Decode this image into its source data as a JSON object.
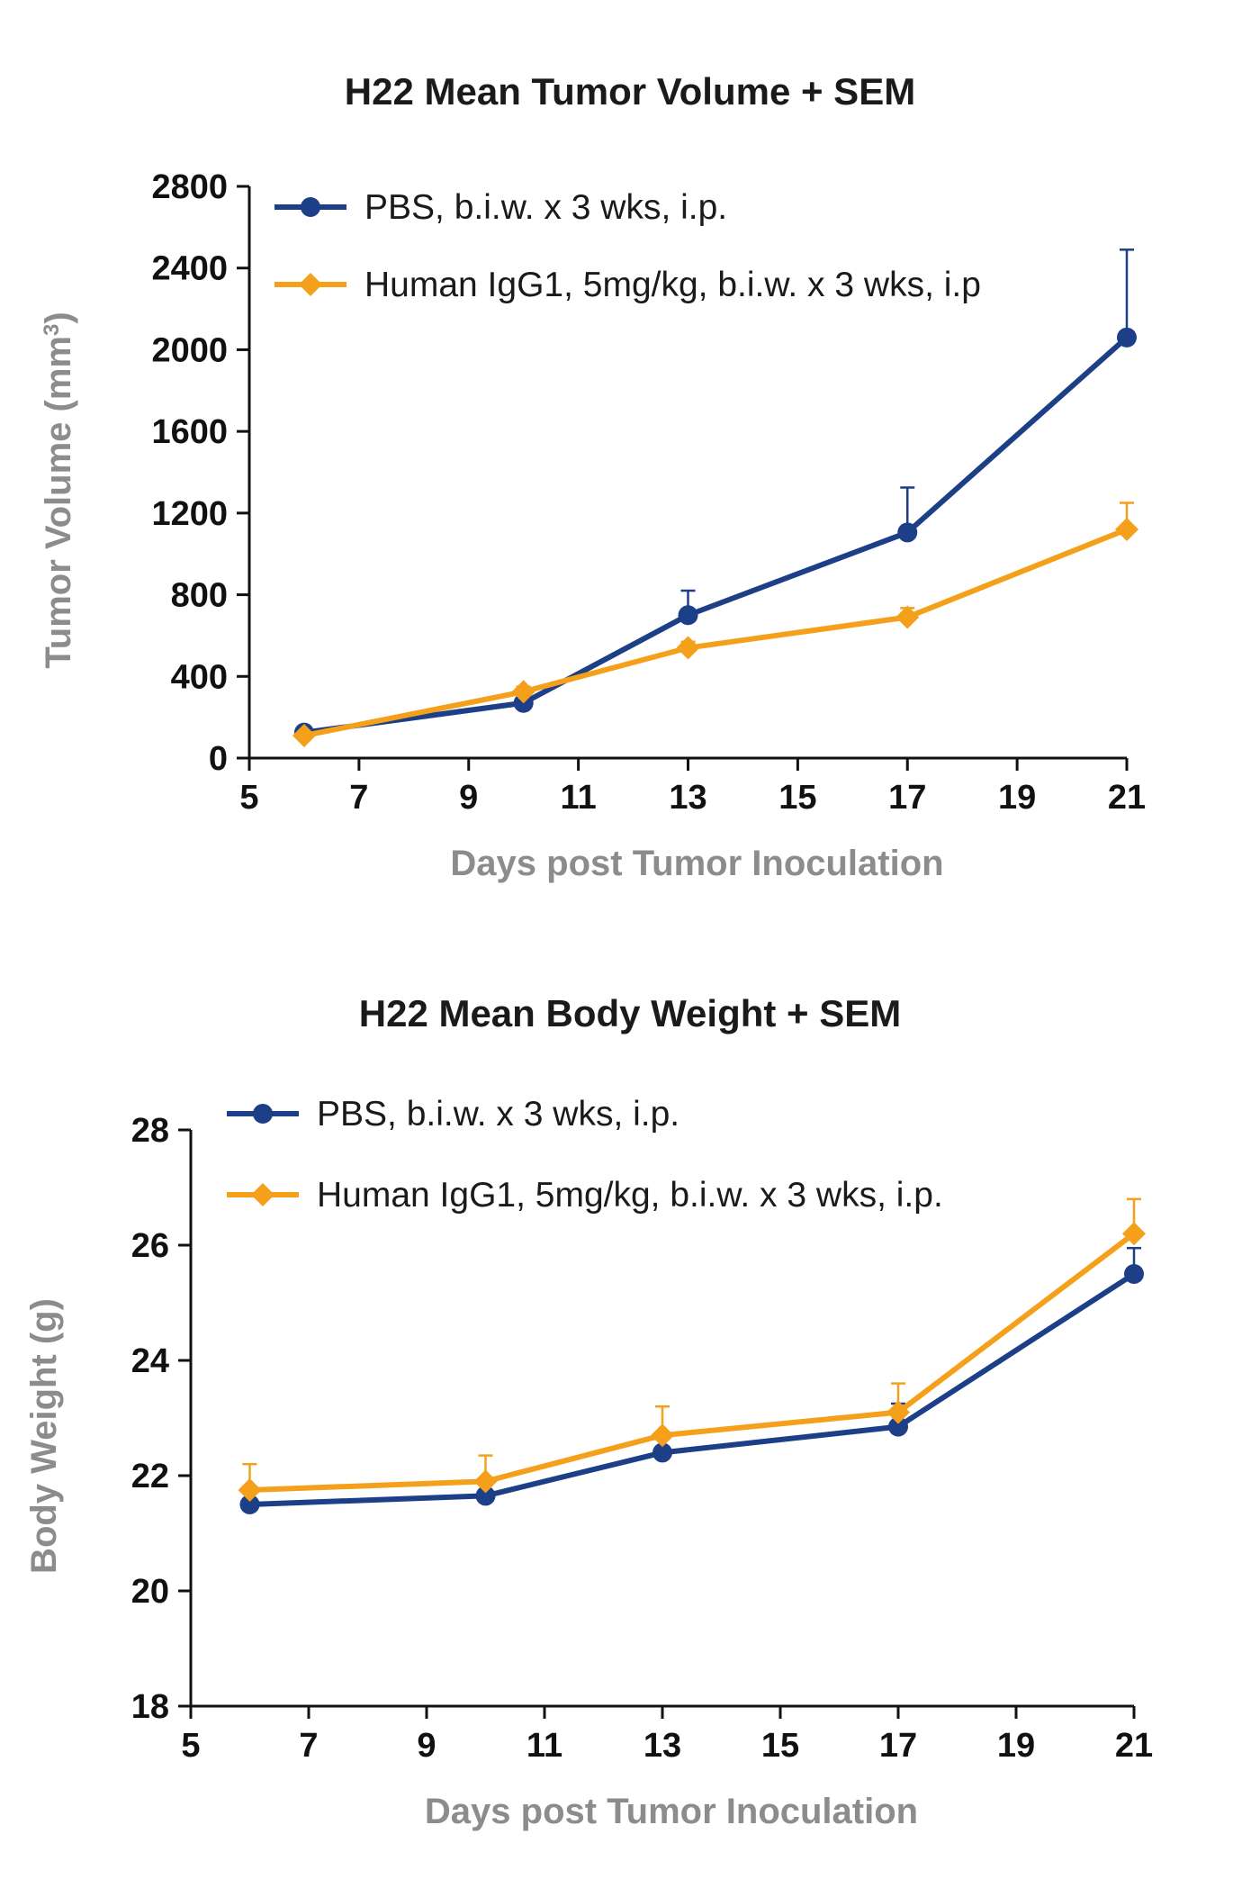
{
  "chart_data": [
    {
      "type": "line",
      "title": "H22 Mean Tumor Volume + SEM",
      "xlabel": "Days post Tumor Inoculation",
      "ylabel": "Tumor Volume (mm",
      "ylabel_sup": "3",
      "ylabel_close": ")",
      "xlim": [
        5,
        21
      ],
      "ylim": [
        0,
        2800
      ],
      "xticks": [
        "5",
        "7",
        "9",
        "11",
        "13",
        "15",
        "17",
        "19",
        "21"
      ],
      "yticks": [
        "0",
        "400",
        "800",
        "1200",
        "1600",
        "2000",
        "2400",
        "2800"
      ],
      "legend_position": "top-left",
      "series": [
        {
          "name": "PBS, b.i.w. x 3 wks, i.p.",
          "color": "#1c3f87",
          "marker": "circle",
          "x": [
            6,
            10,
            13,
            17,
            21
          ],
          "y": [
            125,
            270,
            700,
            1105,
            2060
          ],
          "err": [
            15,
            25,
            120,
            220,
            430
          ]
        },
        {
          "name": "Human IgG1, 5mg/kg, b.i.w. x 3 wks, i.p",
          "color": "#f5a01a",
          "marker": "diamond",
          "x": [
            6,
            10,
            13,
            17,
            21
          ],
          "y": [
            110,
            325,
            540,
            690,
            1120
          ],
          "err": [
            10,
            25,
            30,
            45,
            130
          ]
        }
      ]
    },
    {
      "type": "line",
      "title": "H22 Mean Body Weight + SEM",
      "xlabel": "Days post Tumor Inoculation",
      "ylabel": "Body Weight (g)",
      "xlim": [
        5,
        21
      ],
      "ylim": [
        18,
        28
      ],
      "xticks": [
        "5",
        "7",
        "9",
        "11",
        "13",
        "15",
        "17",
        "19",
        "21"
      ],
      "yticks": [
        "18",
        "20",
        "22",
        "24",
        "26",
        "28"
      ],
      "legend_position": "top-left",
      "series": [
        {
          "name": "PBS, b.i.w. x 3 wks, i.p.",
          "color": "#1c3f87",
          "marker": "circle",
          "x": [
            6,
            10,
            13,
            17,
            21
          ],
          "y": [
            21.5,
            21.65,
            22.4,
            22.85,
            25.5
          ],
          "err": [
            0.2,
            0.2,
            0.3,
            0.4,
            0.45
          ]
        },
        {
          "name": "Human IgG1, 5mg/kg, b.i.w. x 3 wks, i.p.",
          "color": "#f5a01a",
          "marker": "diamond",
          "x": [
            6,
            10,
            13,
            17,
            21
          ],
          "y": [
            21.75,
            21.9,
            22.7,
            23.1,
            26.2
          ],
          "err": [
            0.45,
            0.45,
            0.5,
            0.5,
            0.6
          ]
        }
      ]
    }
  ]
}
